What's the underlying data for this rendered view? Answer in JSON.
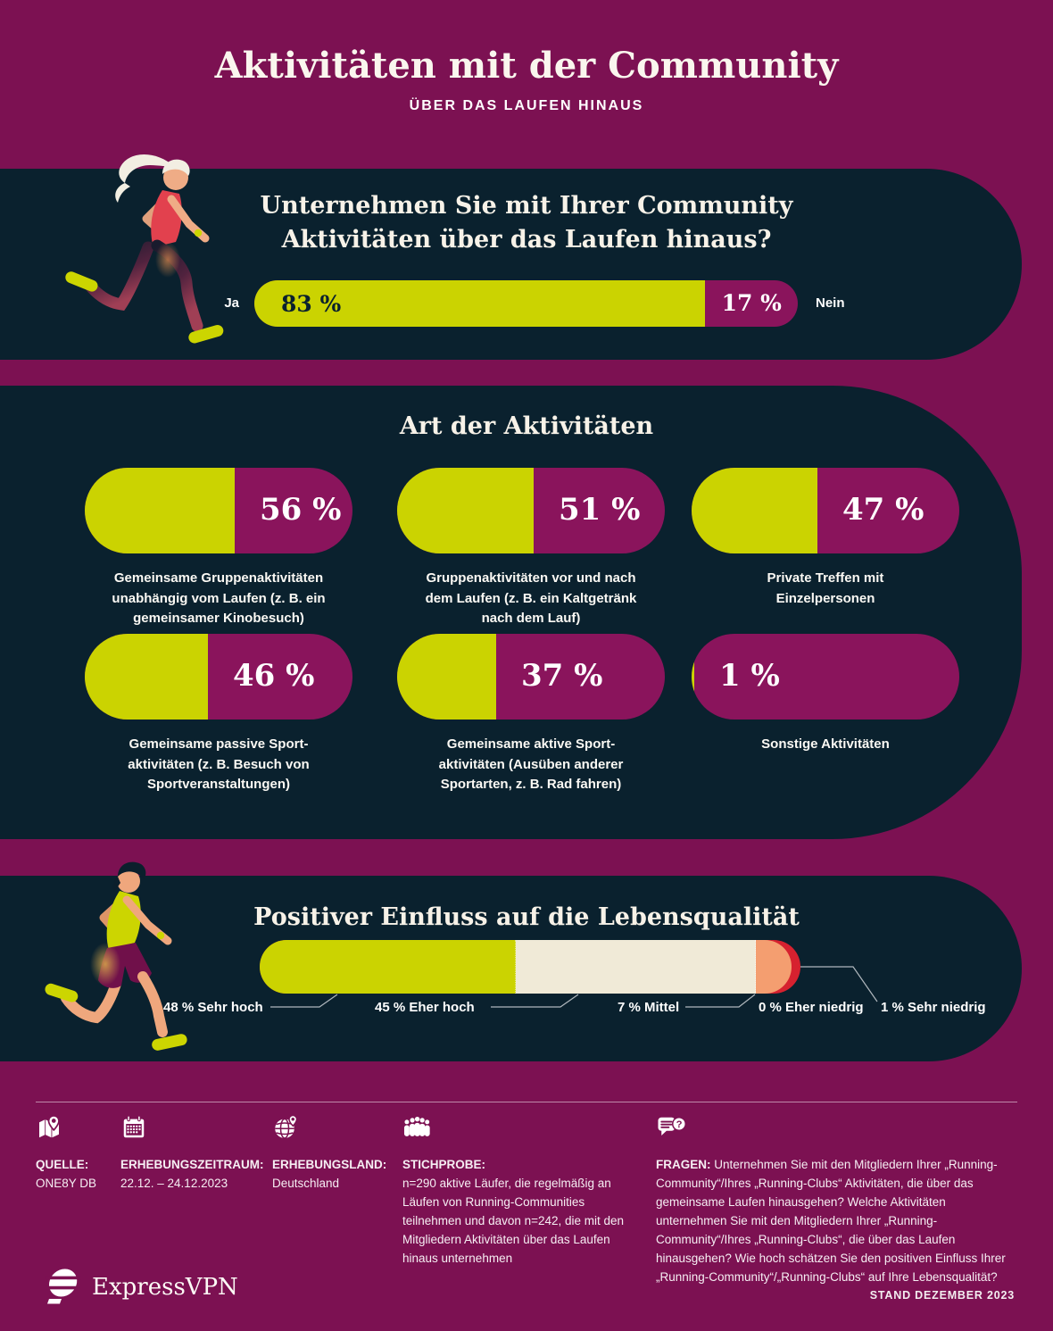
{
  "header": {
    "title": "Aktivitäten mit der Community",
    "subtitle": "ÜBER DAS LAUFEN HINAUS"
  },
  "question_section": {
    "question_line1": "Unternehmen Sie mit Ihrer Community",
    "question_line2": "Aktivitäten über das Laufen hinaus?",
    "yes_label": "Ja",
    "yes_value": "83 %",
    "yes_pct": 83,
    "no_value": "17 %",
    "no_pct": 17,
    "no_label": "Nein"
  },
  "activities_section": {
    "heading": "Art der Aktivitäten",
    "items": [
      {
        "value": "56 %",
        "pct": 56,
        "label": "Gemeinsame Gruppenaktivitäten unabhängig vom Laufen (z. B. ein gemeinsamer Kinobesuch)"
      },
      {
        "value": "51 %",
        "pct": 51,
        "label": "Gruppenaktivitäten vor und nach dem Laufen (z. B. ein Kaltgetränk nach dem Lauf)"
      },
      {
        "value": "47 %",
        "pct": 47,
        "label": "Private Treffen mit Einzelpersonen"
      },
      {
        "value": "46 %",
        "pct": 46,
        "label": "Gemeinsame passive Sport-aktivitäten (z. B. Besuch von Sportveranstaltungen)"
      },
      {
        "value": "37 %",
        "pct": 37,
        "label": "Gemeinsame aktive Sport-aktivitäten (Ausüben anderer Sportarten, z. B. Rad fahren)"
      },
      {
        "value": "1 %",
        "pct": 1,
        "label": "Sonstige Aktivitäten"
      }
    ]
  },
  "influence_section": {
    "heading": "Positiver Einfluss auf die Lebensqualität",
    "segments": [
      {
        "label": "48 % Sehr hoch",
        "pct": 48,
        "color": "#cbd301"
      },
      {
        "label": "45 % Eher hoch",
        "pct": 45,
        "color": "#f0ead7"
      },
      {
        "label": "7 % Mittel",
        "pct": 7,
        "color": "#f49e70"
      },
      {
        "label": "0 % Eher niedrig",
        "pct": 0,
        "color": "#f49e70"
      },
      {
        "label": "1 % Sehr niedrig",
        "pct": 1,
        "color": "#d6212f"
      }
    ]
  },
  "footer": {
    "icons": [
      "map-pin",
      "calendar",
      "globe-pin",
      "people-group",
      "chat-question"
    ],
    "source_label": "QUELLE:",
    "source_value": "ONE8Y DB",
    "period_label": "ERHEBUNGSZEITRAUM:",
    "period_value": "22.12. – 24.12.2023",
    "country_label": "ERHEBUNGSLAND:",
    "country_value": "Deutschland",
    "sample_label": "STICHPROBE:",
    "sample_value": "n=290 aktive Läufer, die regelmäßig an Läufen von Running-Communities teilnehmen und davon n=242, die mit den Mitgliedern Aktivitäten über das Laufen hinaus unternehmen",
    "questions_label": "FRAGEN:",
    "questions_value": "Unternehmen Sie mit den Mitgliedern Ihrer „Running-Community“/Ihres „Running-Clubs“ Aktivitäten, die über das gemeinsame Laufen hinausgehen? Welche Aktivitäten unternehmen Sie mit den Mitgliedern Ihrer „Running-Community“/Ihres „Running-Clubs“, die über das Laufen hinausgehen? Wie hoch schätzen Sie den positiven Einfluss Ihrer „Running-Community“/„Running-Clubs“ auf Ihre Lebensqualität?",
    "brand": "ExpressVPN",
    "stand": "STAND DEZEMBER 2023"
  },
  "colors": {
    "background": "#7c1152",
    "panel": "#0a212e",
    "accent_green": "#cbd301",
    "accent_magenta": "#8a145c",
    "cream": "#f0ead7",
    "orange": "#f49e70",
    "red": "#d6212f"
  },
  "chart_data": [
    {
      "type": "bar",
      "title": "Unternehmen Sie mit Ihrer Community Aktivitäten über das Laufen hinaus?",
      "categories": [
        "Ja",
        "Nein"
      ],
      "values": [
        83,
        17
      ],
      "unit": "%",
      "layout": "single stacked horizontal pill, green=Ja, magenta=Nein"
    },
    {
      "type": "bar",
      "title": "Art der Aktivitäten",
      "categories": [
        "Gemeinsame Gruppenaktivitäten unabhängig vom Laufen (z. B. ein gemeinsamer Kinobesuch)",
        "Gruppenaktivitäten vor und nach dem Laufen (z. B. ein Kaltgetränk nach dem Lauf)",
        "Private Treffen mit Einzelpersonen",
        "Gemeinsame passive Sport-aktivitäten (z. B. Besuch von Sportveranstaltungen)",
        "Gemeinsame aktive Sport-aktivitäten (Ausüben anderer Sportarten, z. B. Rad fahren)",
        "Sonstige Aktivitäten"
      ],
      "values": [
        56,
        51,
        47,
        46,
        37,
        1
      ],
      "unit": "%",
      "layout": "six pill gauges in 3x2 grid, green fill = value"
    },
    {
      "type": "bar",
      "title": "Positiver Einfluss auf die Lebensqualität",
      "categories": [
        "Sehr hoch",
        "Eher hoch",
        "Mittel",
        "Eher niedrig",
        "Sehr niedrig"
      ],
      "values": [
        48,
        45,
        7,
        0,
        1
      ],
      "unit": "%",
      "layout": "single stacked horizontal pill with callout labels"
    }
  ]
}
